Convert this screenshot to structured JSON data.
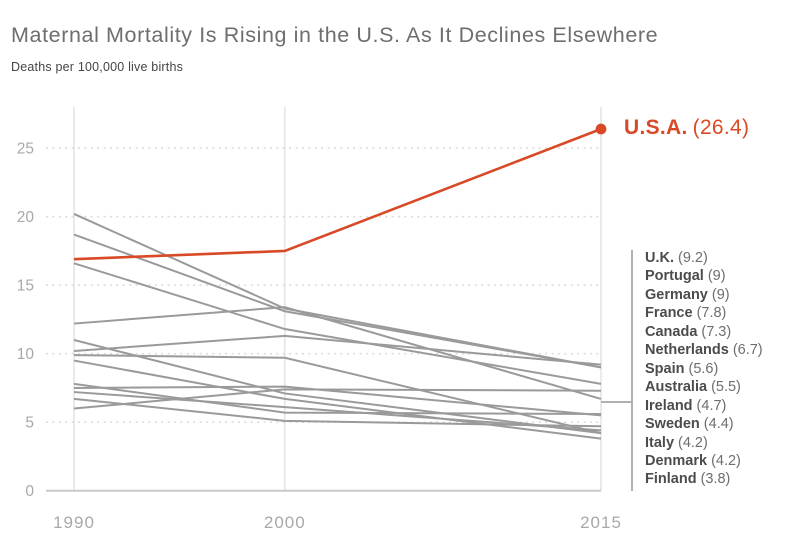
{
  "title": "Maternal Mortality Is Rising in the U.S. As It Declines Elsewhere",
  "subtitle": "Deaths per 100,000 live births",
  "colors": {
    "usa_red": "#d84a26",
    "gray_line": "#9a9a9a",
    "dotted_grid": "#d8d8d8",
    "vertical_grid": "#e4e4e4",
    "baseline": "#c8c8c8",
    "axis_label": "#a8a8a8",
    "title_text": "#6e6e6e",
    "subtitle_text": "#454545",
    "country_name": "#4c4c4c",
    "country_value": "#6e6e6e",
    "legend_bar": "#b0b0b0"
  },
  "chart_data": {
    "type": "line",
    "title": "Maternal Mortality Is Rising in the U.S. As It Declines Elsewhere",
    "ylabel": "Deaths per 100,000 live births",
    "xlabel": "",
    "x": [
      1990,
      2000,
      2015
    ],
    "xticks": [
      "1990",
      "2000",
      "2015"
    ],
    "yticks": [
      0,
      5,
      10,
      15,
      20,
      25
    ],
    "ylim": [
      0,
      28
    ],
    "grid": "dotted horizontal gridlines, solid vertical year gridlines, legend bracket at right",
    "highlight_series": {
      "name": "U.S.A.",
      "values": [
        16.9,
        17.5,
        26.4
      ],
      "label": "U.S.A.",
      "label_value": "(26.4)",
      "endpoint_dot": true
    },
    "series": [
      {
        "name": "Portugal",
        "values": [
          20.2,
          13.3,
          9.0
        ]
      },
      {
        "name": "Germany",
        "values": [
          18.7,
          13.1,
          9.0
        ]
      },
      {
        "name": "France",
        "values": [
          16.6,
          11.8,
          7.8
        ]
      },
      {
        "name": "Netherlands",
        "values": [
          12.2,
          13.4,
          6.7
        ]
      },
      {
        "name": "Italy",
        "values": [
          11.0,
          7.1,
          4.2
        ]
      },
      {
        "name": "U.K.",
        "values": [
          10.2,
          11.3,
          9.2
        ]
      },
      {
        "name": "Denmark",
        "values": [
          9.9,
          9.7,
          4.2
        ]
      },
      {
        "name": "Finland",
        "values": [
          9.5,
          6.7,
          3.8
        ]
      },
      {
        "name": "Spain",
        "values": [
          7.8,
          5.7,
          5.6
        ]
      },
      {
        "name": "Australia",
        "values": [
          7.5,
          7.6,
          5.5
        ]
      },
      {
        "name": "Sweden",
        "values": [
          7.2,
          6.1,
          4.4
        ]
      },
      {
        "name": "Ireland",
        "values": [
          6.7,
          5.1,
          4.7
        ]
      },
      {
        "name": "Canada",
        "values": [
          6.0,
          7.4,
          7.3
        ]
      }
    ],
    "legend_position": "right"
  },
  "legend": {
    "items": [
      {
        "name": "U.K.",
        "value": "(9.2)"
      },
      {
        "name": "Portugal",
        "value": "(9)"
      },
      {
        "name": "Germany",
        "value": "(9)"
      },
      {
        "name": "France",
        "value": "(7.8)"
      },
      {
        "name": "Canada",
        "value": "(7.3)"
      },
      {
        "name": "Netherlands",
        "value": "(6.7)"
      },
      {
        "name": "Spain",
        "value": "(5.6)"
      },
      {
        "name": "Australia",
        "value": "(5.5)"
      },
      {
        "name": "Ireland",
        "value": "(4.7)"
      },
      {
        "name": "Sweden",
        "value": "(4.4)"
      },
      {
        "name": "Italy",
        "value": "(4.2)"
      },
      {
        "name": "Denmark",
        "value": "(4.2)"
      },
      {
        "name": "Finland",
        "value": "(3.8)"
      }
    ]
  }
}
